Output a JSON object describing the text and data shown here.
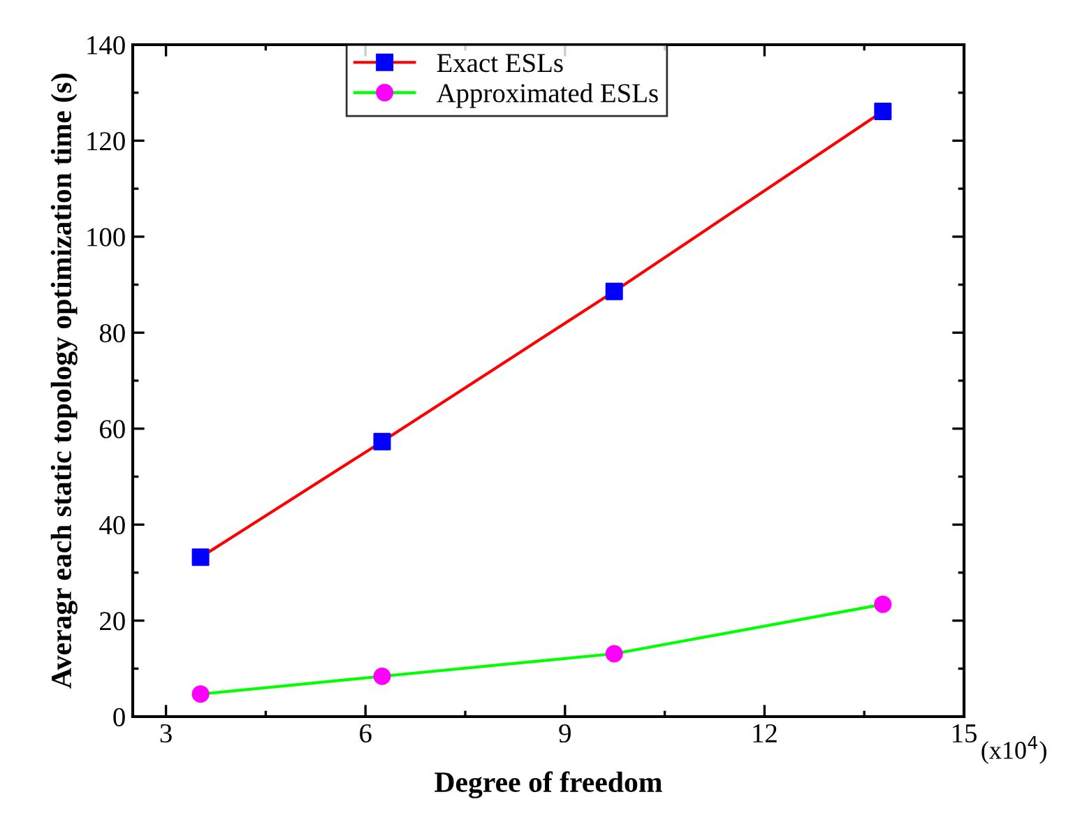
{
  "chart_data": {
    "type": "line",
    "xlabel": "Degree of freedom",
    "ylabel": "Averagr each static topology optimization time (s)",
    "x": [
      3.52,
      6.25,
      9.74,
      13.78
    ],
    "series": [
      {
        "name": "Exact ESLs",
        "color": "#ff0000",
        "marker": "square",
        "colors": [
          "#0000ff",
          "#0000ff",
          "#0000ff",
          "#0000ff"
        ],
        "values": [
          33.2,
          57.3,
          88.6,
          126.1
        ]
      },
      {
        "name": "Approximated ESLs",
        "color": "#00ff00",
        "marker": "circle",
        "colors": [
          "#ff00ff",
          "#ff00ff",
          "#ff00ff",
          "#ff00ff"
        ],
        "values": [
          4.7,
          8.4,
          13.1,
          23.4
        ]
      }
    ],
    "xlim": [
      2.5,
      15
    ],
    "xticks": [
      3,
      6,
      9,
      12,
      15
    ],
    "ylim": [
      0,
      140
    ],
    "yticks": [
      0,
      20,
      40,
      60,
      80,
      100,
      120,
      140
    ],
    "annotations": [
      "(x10$^{4}$)"
    ],
    "legend": "top",
    "grid": false
  }
}
